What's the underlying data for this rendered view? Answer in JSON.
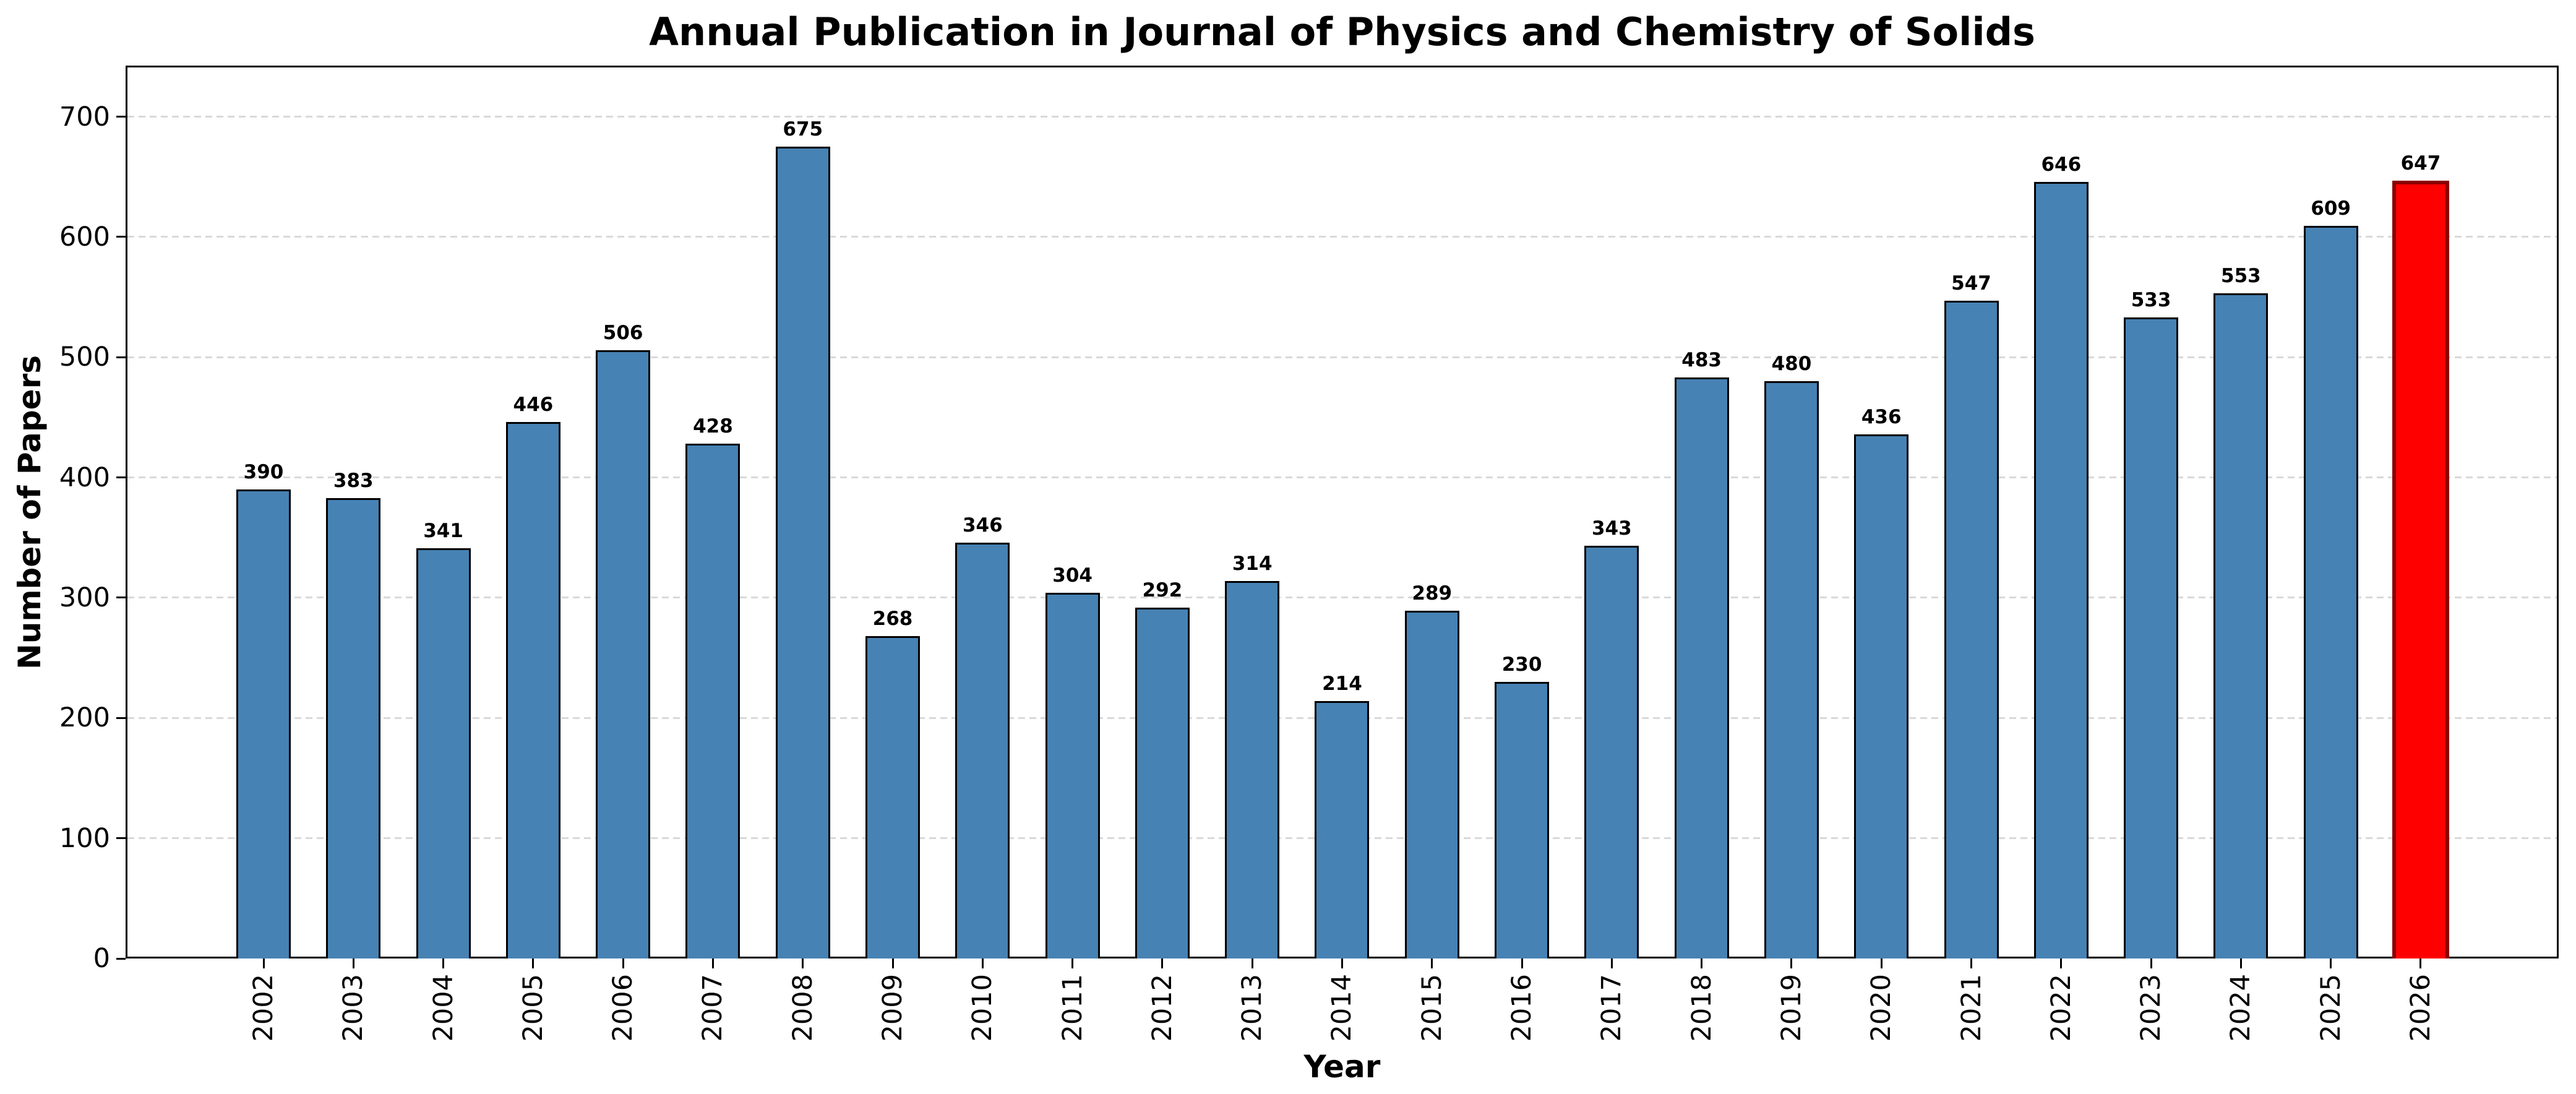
{
  "chart_data": {
    "type": "bar",
    "title": "Annual Publication in Journal of Physics and Chemistry of Solids",
    "xlabel": "Year",
    "ylabel": "Number of Papers",
    "categories": [
      "2002",
      "2003",
      "2004",
      "2005",
      "2006",
      "2007",
      "2008",
      "2009",
      "2010",
      "2011",
      "2012",
      "2013",
      "2014",
      "2015",
      "2016",
      "2017",
      "2018",
      "2019",
      "2020",
      "2021",
      "2022",
      "2023",
      "2024",
      "2025",
      "2026"
    ],
    "values": [
      390,
      383,
      341,
      446,
      506,
      428,
      675,
      268,
      346,
      304,
      292,
      314,
      214,
      289,
      230,
      343,
      483,
      480,
      436,
      547,
      646,
      533,
      553,
      609,
      647
    ],
    "yticks": [
      0,
      100,
      200,
      300,
      400,
      500,
      600,
      700
    ],
    "ylim": [
      0,
      742.5
    ],
    "grid": "horizontal-dashed",
    "legend": "none",
    "highlight_index": 24,
    "highlight_category": "2026",
    "colors": {
      "bar_fill": "#4682b4",
      "bar_edge": "#000000",
      "highlight_fill": "#ff0000",
      "highlight_edge": "#8b0000",
      "grid_line": "#d9d9d9",
      "text": "#000000",
      "background": "#ffffff"
    }
  }
}
